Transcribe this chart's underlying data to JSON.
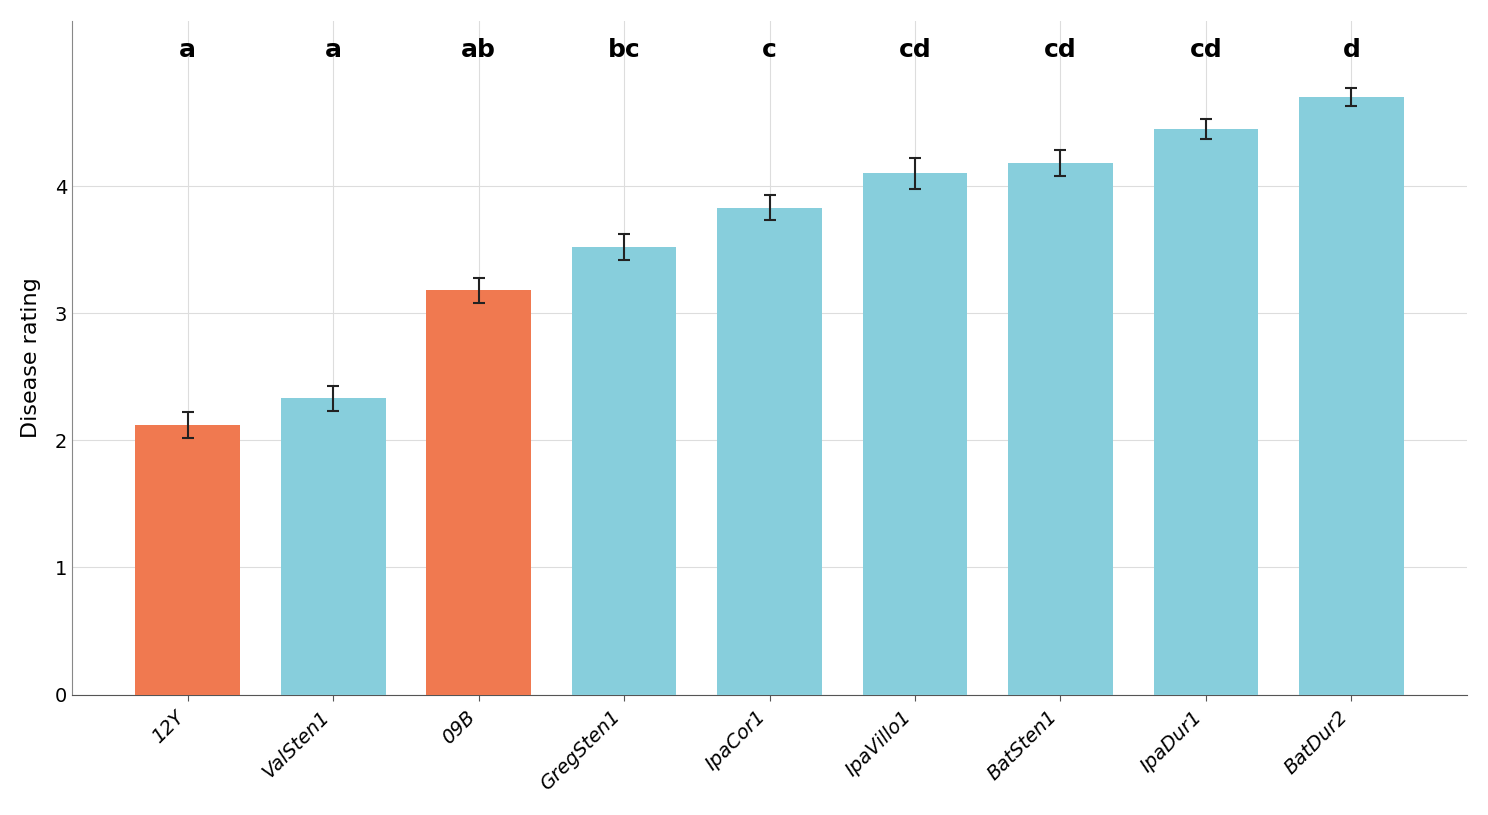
{
  "categories": [
    "12Y",
    "ValSten1",
    "09B",
    "GregSten1",
    "IpaCor1",
    "IpaVillo1",
    "BatSten1",
    "IpaDur1",
    "BatDur2"
  ],
  "values": [
    2.12,
    2.33,
    3.18,
    3.52,
    3.83,
    4.1,
    4.18,
    4.45,
    4.7
  ],
  "errors": [
    0.1,
    0.1,
    0.1,
    0.1,
    0.1,
    0.12,
    0.1,
    0.08,
    0.07
  ],
  "bar_colors": [
    "#F07950",
    "#87CEDC",
    "#F07950",
    "#87CEDC",
    "#87CEDC",
    "#87CEDC",
    "#87CEDC",
    "#87CEDC",
    "#87CEDC"
  ],
  "letters": [
    "a",
    "a",
    "ab",
    "bc",
    "c",
    "cd",
    "cd",
    "cd",
    "d"
  ],
  "ylabel": "Disease rating",
  "ylim": [
    0,
    5.3
  ],
  "yticks": [
    0,
    1,
    2,
    3,
    4
  ],
  "background_color": "#FFFFFF",
  "grid_color": "#DDDDDD",
  "bar_width": 0.72,
  "letter_fontsize": 18,
  "ylabel_fontsize": 16,
  "tick_fontsize": 14,
  "xtick_fontsize": 14,
  "error_capsize": 4,
  "error_color": "#222222",
  "error_linewidth": 1.5
}
